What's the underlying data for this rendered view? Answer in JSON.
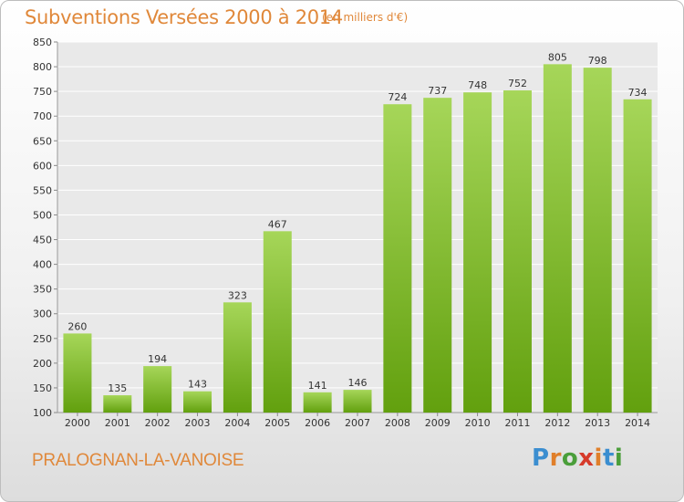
{
  "header": {
    "title": "Subventions Versées 2000 à 2014",
    "unit_note": "(en milliers d'€)"
  },
  "footer": {
    "commune": "PRALOGNAN-LA-VANOISE",
    "logo_text": "Proxiti"
  },
  "colors": {
    "title": "#e0883a",
    "bar_top": "#a6d659",
    "bar_bottom": "#62a00e",
    "logo_letters": [
      "#3b8ed0",
      "#e07f2a",
      "#4a9e3a",
      "#d63a2a",
      "#e07f2a",
      "#3b8ed0",
      "#4a9e3a"
    ]
  },
  "chart_data": {
    "type": "bar",
    "title": "Subventions Versées 2000 à 2014",
    "subtitle": "(en milliers d'€)",
    "categories": [
      "2000",
      "2001",
      "2002",
      "2003",
      "2004",
      "2005",
      "2006",
      "2007",
      "2008",
      "2009",
      "2010",
      "2011",
      "2012",
      "2013",
      "2014"
    ],
    "values": [
      260,
      135,
      194,
      143,
      323,
      467,
      141,
      146,
      724,
      737,
      748,
      752,
      805,
      798,
      734
    ],
    "ylim": [
      100,
      850
    ],
    "yticks": [
      100,
      150,
      200,
      250,
      300,
      350,
      400,
      450,
      500,
      550,
      600,
      650,
      700,
      750,
      800,
      850
    ],
    "grid": true,
    "legend": "none"
  }
}
